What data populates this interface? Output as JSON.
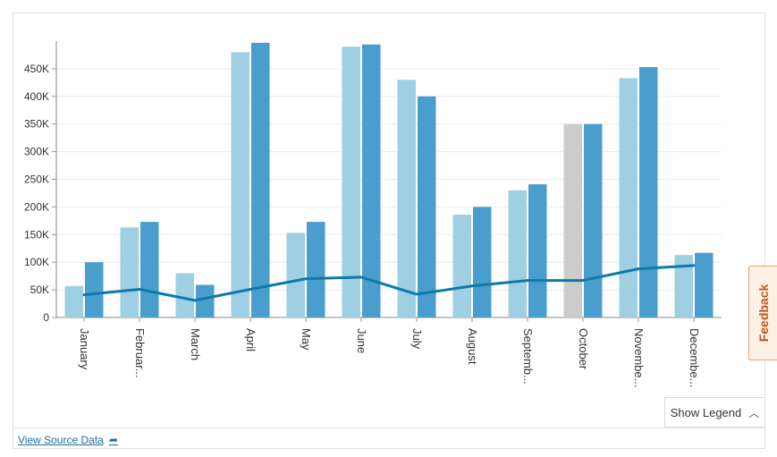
{
  "chart_data": {
    "type": "bar",
    "categories": [
      "January",
      "Februar...",
      "March",
      "April",
      "May",
      "June",
      "July",
      "August",
      "Septemb...",
      "October",
      "Novembe...",
      "Decembe..."
    ],
    "series": [
      {
        "type": "bar",
        "color": "#9ecfe3",
        "values": [
          57000,
          163000,
          80000,
          480000,
          153000,
          490000,
          430000,
          186000,
          230000,
          350000,
          433000,
          113000
        ],
        "highlight": {
          "index": 9,
          "color": "#cccccc"
        }
      },
      {
        "type": "bar",
        "color": "#4a9ecd",
        "values": [
          100000,
          173000,
          59000,
          497000,
          173000,
          494000,
          400000,
          200000,
          241000,
          350000,
          453000,
          117000
        ]
      },
      {
        "type": "line",
        "color": "#0e7aab",
        "values": [
          41000,
          51000,
          31000,
          51000,
          70000,
          73000,
          42000,
          57000,
          67000,
          67000,
          88000,
          94000
        ]
      }
    ],
    "yticks": [
      "0",
      "50K",
      "100K",
      "150K",
      "200K",
      "250K",
      "300K",
      "350K",
      "400K",
      "450K"
    ],
    "ylim": [
      0,
      500000
    ],
    "grid": true
  },
  "footer": {
    "source_link": "View Source Data",
    "source_icon": "share-arrow-icon"
  },
  "legend_toggle": {
    "label": "Show Legend",
    "icon": "chevron-up-icon"
  },
  "feedback": {
    "label": "Feedback",
    "accent": "#c0581c"
  }
}
